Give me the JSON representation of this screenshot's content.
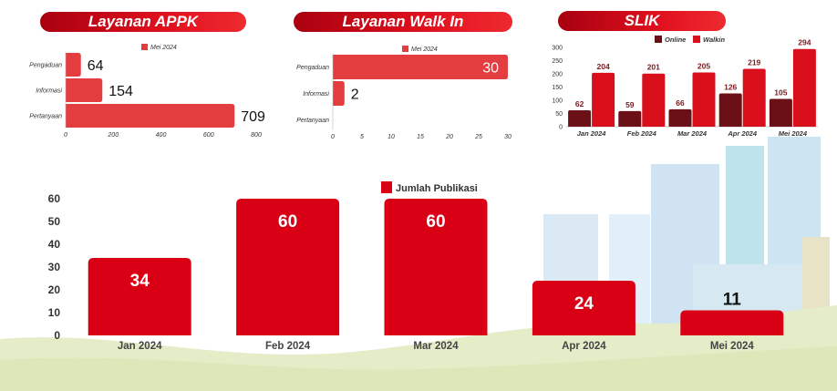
{
  "colors": {
    "brand_red": "#d90016",
    "bar_red_light": "#e43d40",
    "online_dark": "#6b1016",
    "walkin_red": "#d9101c",
    "label_dark_red": "#7a1a1e",
    "axis_text": "#333333"
  },
  "chart_data": [
    {
      "type": "bar",
      "orientation": "horizontal",
      "title": "Layanan APPK",
      "categories": [
        "Pengaduan",
        "Informasi",
        "Pertanyaan"
      ],
      "series": [
        {
          "name": "Mei 2024",
          "values": [
            64,
            154,
            709
          ]
        }
      ],
      "value_labels": [
        "64",
        "154",
        "709"
      ],
      "xlim": [
        0,
        800
      ],
      "xticks": [
        "0",
        "200",
        "400",
        "600",
        "800"
      ],
      "legend": "top-center",
      "grid": false
    },
    {
      "type": "bar",
      "orientation": "horizontal",
      "title": "Layanan Walk In",
      "categories": [
        "Pengaduan",
        "Informasi",
        "Pertanyaan"
      ],
      "series": [
        {
          "name": "Mei 2024",
          "values": [
            30,
            2,
            0
          ]
        }
      ],
      "value_labels": [
        "30",
        "2",
        ""
      ],
      "xlim": [
        0,
        30
      ],
      "xticks": [
        "0",
        "5",
        "10",
        "15",
        "20",
        "25",
        "30"
      ],
      "legend": "top-center",
      "grid": false
    },
    {
      "type": "bar",
      "title": "SLIK",
      "categories": [
        "Jan 2024",
        "Feb 2024",
        "Mar 2024",
        "Apr 2024",
        "Mei 2024"
      ],
      "series": [
        {
          "name": "Online",
          "values": [
            62,
            59,
            66,
            126,
            105
          ],
          "value_labels": [
            "62",
            "59",
            "66",
            "126",
            "105"
          ]
        },
        {
          "name": "Walkin",
          "values": [
            204,
            201,
            205,
            219,
            294
          ],
          "value_labels": [
            "204",
            "201",
            "205",
            "219",
            "294"
          ]
        }
      ],
      "ylim": [
        0,
        300
      ],
      "yticks": [
        "0",
        "50",
        "100",
        "150",
        "200",
        "250",
        "300"
      ],
      "legend": "top-center",
      "grid": false
    },
    {
      "type": "bar",
      "title": "",
      "categories": [
        "Jan 2024",
        "Feb 2024",
        "Mar 2024",
        "Apr 2024",
        "Mei 2024"
      ],
      "series": [
        {
          "name": "Jumlah Publikasi",
          "values": [
            34,
            60,
            60,
            24,
            11
          ],
          "value_labels": [
            "34",
            "60",
            "60",
            "24",
            "11"
          ]
        }
      ],
      "ylim": [
        0,
        60
      ],
      "yticks": [
        "0",
        "10",
        "20",
        "30",
        "40",
        "50",
        "60"
      ],
      "legend": "top-center",
      "grid": false
    }
  ]
}
